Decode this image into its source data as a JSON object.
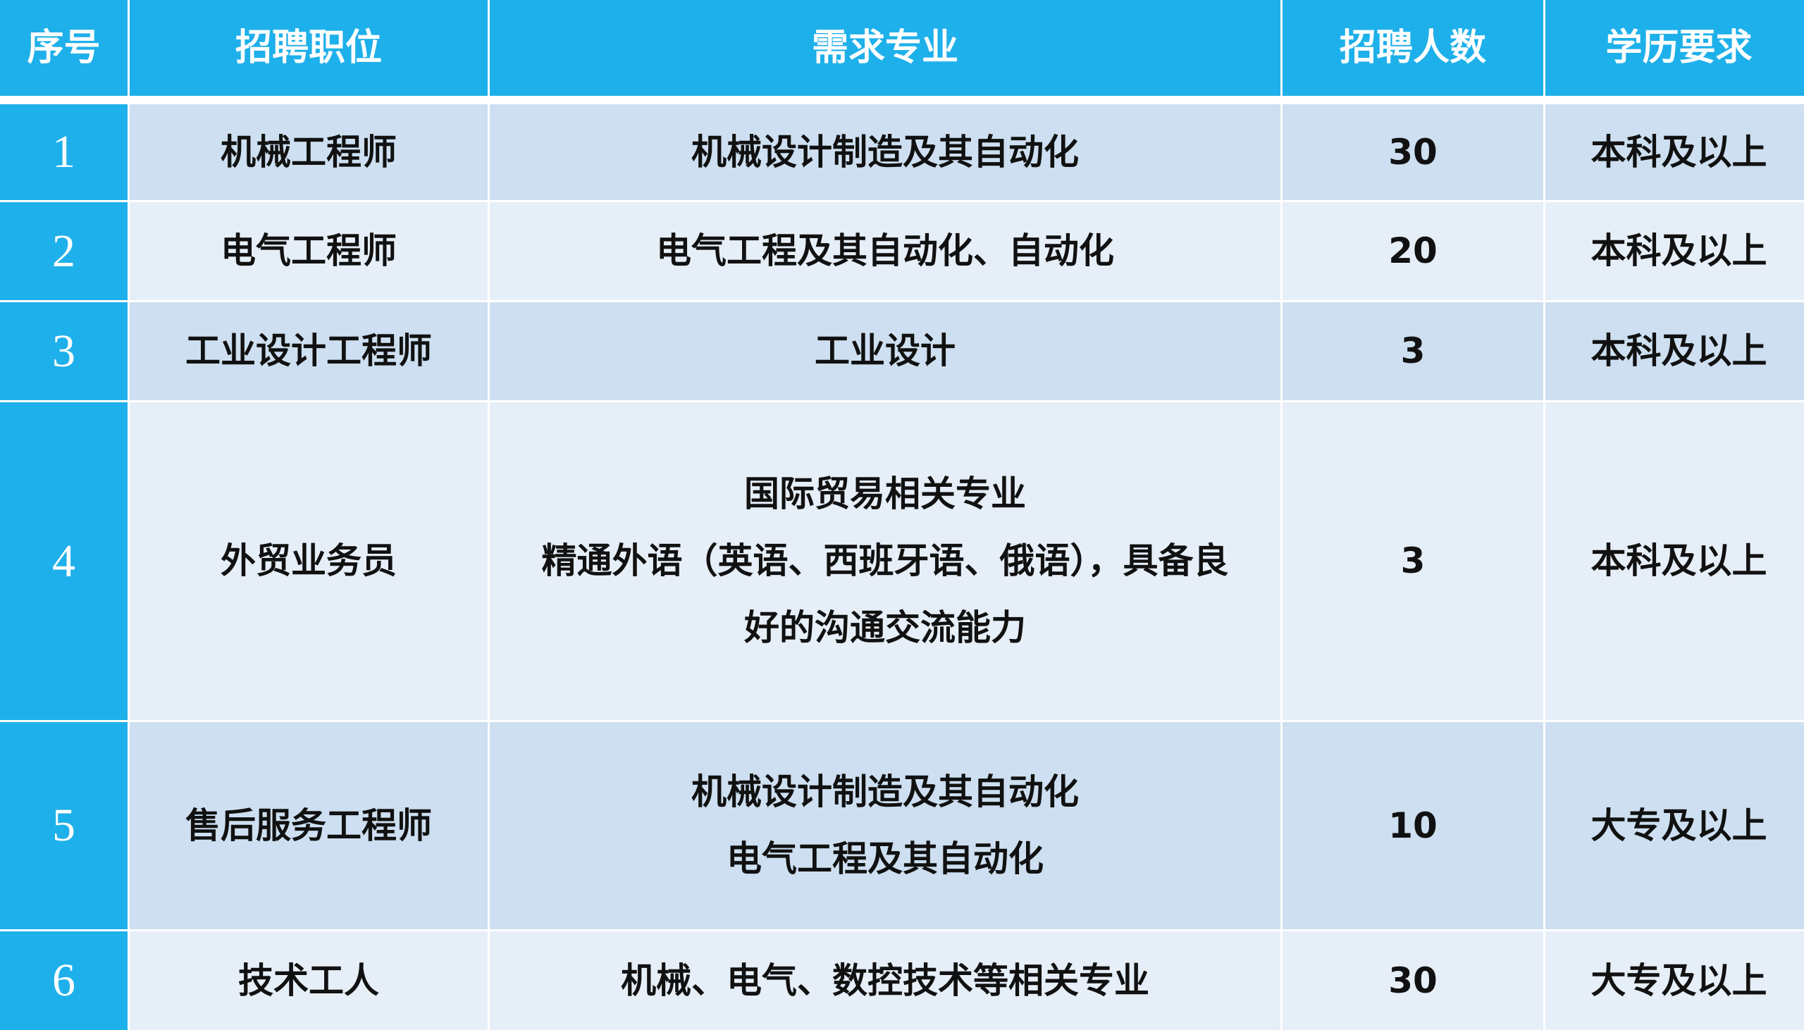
{
  "header": [
    "序号",
    "招聘职位",
    "需求专业",
    "招聘人数",
    "学历要求"
  ],
  "rows": [
    {
      "no": "1",
      "position": "机械工程师",
      "major": [
        "机械设计制造及其自动化"
      ],
      "count": "30",
      "education": "本科及以上"
    },
    {
      "no": "2",
      "position": "电气工程师",
      "major": [
        "电气工程及其自动化、自动化"
      ],
      "count": "20",
      "education": "本科及以上"
    },
    {
      "no": "3",
      "position": "工业设计工程师",
      "major": [
        "工业设计"
      ],
      "count": "3",
      "education": "本科及以上"
    },
    {
      "no": "4",
      "position": "外贸业务员",
      "major": [
        "国际贸易相关专业",
        "精通外语（英语、西班牙语、俄语），具备良",
        "好的沟通交流能力"
      ],
      "count": "3",
      "education": "本科及以上"
    },
    {
      "no": "5",
      "position": "售后服务工程师",
      "major": [
        "机械设计制造及其自动化",
        "电气工程及其自动化"
      ],
      "count": "10",
      "education": "大专及以上"
    },
    {
      "no": "6",
      "position": "技术工人",
      "major": [
        "机械、电气、数控技术等相关专业"
      ],
      "count": "30",
      "education": "大专及以上"
    }
  ],
  "colors": {
    "header": "#1eb0ea",
    "row_odd": "#cddff0",
    "row_even": "#e6eff8"
  }
}
